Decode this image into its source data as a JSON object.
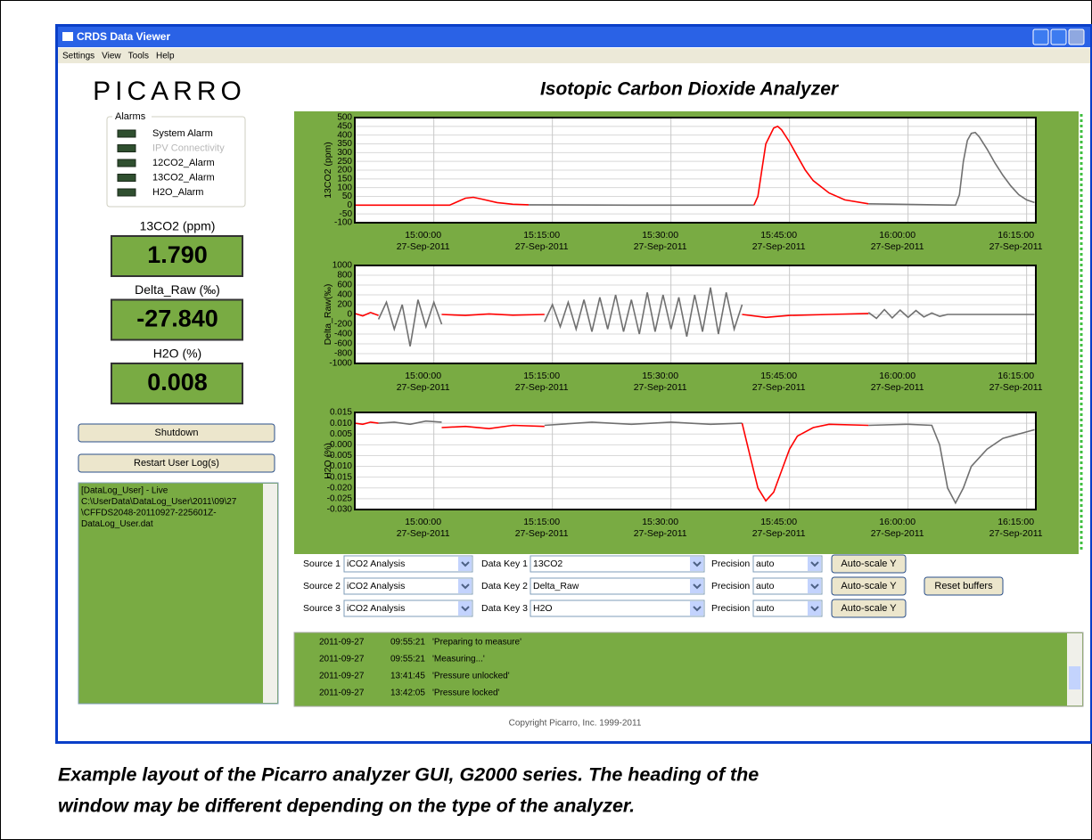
{
  "window": {
    "title": "CRDS Data Viewer",
    "menu": [
      "Settings",
      "View",
      "Tools",
      "Help"
    ]
  },
  "logo": "PICARRO",
  "header_title": "Isotopic Carbon Dioxide Analyzer",
  "alarms": {
    "title": "Alarms",
    "items": [
      "System Alarm",
      "IPV Connectivity",
      "12CO2_Alarm",
      "13CO2_Alarm",
      "H2O_Alarm"
    ]
  },
  "readouts": [
    {
      "label": "13CO2 (ppm)",
      "value": "1.790"
    },
    {
      "label": "Delta_Raw (‰)",
      "value": "-27.840"
    },
    {
      "label": "H2O (%)",
      "value": "0.008"
    }
  ],
  "buttons": [
    "Shutdown",
    "Restart User Log(s)"
  ],
  "user_log": [
    "[DataLog_User] - Live",
    "C:\\UserData\\DataLog_User\\2011\\09\\27",
    "\\CFFDS2048-20110927-225601Z-",
    "DataLog_User.dat"
  ],
  "chart_data": [
    {
      "type": "line",
      "ylabel": "13CO2 (ppm)",
      "date": "27-Sep-2011",
      "xlim": [
        "14:50:00",
        "16:16:10"
      ],
      "xticks": [
        "15:00:00",
        "15:15:00",
        "15:30:00",
        "15:45:00",
        "16:00:00",
        "16:15:00"
      ],
      "ylim": [
        -100,
        500
      ],
      "yticks": [
        500,
        450,
        400,
        350,
        300,
        250,
        200,
        150,
        100,
        50,
        0,
        -50,
        -100
      ],
      "grid": true,
      "series": [
        {
          "color": "#ff0000",
          "x": [
            "14:50:00",
            "15:02:00",
            "15:03:00",
            "15:04:00",
            "15:05:00",
            "15:06:00",
            "15:08:00",
            "15:10:00",
            "15:12:00"
          ],
          "values": [
            0,
            0,
            20,
            40,
            45,
            35,
            15,
            5,
            2
          ]
        },
        {
          "color": "#707070",
          "x": [
            "15:12:00",
            "15:25:00",
            "15:40:30"
          ],
          "values": [
            2,
            0,
            0
          ]
        },
        {
          "color": "#ff0000",
          "x": [
            "15:40:30",
            "15:41:00",
            "15:41:30",
            "15:42:00",
            "15:43:00",
            "15:43:30",
            "15:44:00",
            "15:45:00",
            "15:46:00",
            "15:47:00",
            "15:48:00",
            "15:50:00",
            "15:52:00",
            "15:55:00"
          ],
          "values": [
            0,
            50,
            200,
            350,
            440,
            450,
            430,
            360,
            280,
            200,
            140,
            70,
            30,
            8
          ]
        },
        {
          "color": "#707070",
          "x": [
            "15:55:00",
            "16:06:00",
            "16:06:30",
            "16:07:00",
            "16:07:30",
            "16:08:00",
            "16:08:30",
            "16:09:00",
            "16:10:00",
            "16:11:00",
            "16:12:00",
            "16:13:00",
            "16:14:00",
            "16:15:00",
            "16:16:00"
          ],
          "values": [
            8,
            0,
            60,
            250,
            370,
            410,
            415,
            390,
            320,
            240,
            170,
            110,
            60,
            30,
            15
          ]
        }
      ]
    },
    {
      "type": "line",
      "ylabel": "Delta_Raw(‰)",
      "date": "27-Sep-2011",
      "xlim": [
        "14:50:00",
        "16:16:10"
      ],
      "xticks": [
        "15:00:00",
        "15:15:00",
        "15:30:00",
        "15:45:00",
        "16:00:00",
        "16:15:00"
      ],
      "ylim": [
        -1000,
        1000
      ],
      "yticks": [
        1000,
        800,
        600,
        400,
        200,
        0,
        -200,
        -400,
        -600,
        -800,
        -1000
      ],
      "grid": true,
      "series": [
        {
          "color": "#ff0000",
          "x": [
            "14:50:00",
            "14:51:00",
            "14:52:00",
            "14:53:00"
          ],
          "values": [
            20,
            -30,
            40,
            -20
          ]
        },
        {
          "color": "#707070",
          "x": [
            "14:53:00",
            "14:54:00",
            "14:55:00",
            "14:56:00",
            "14:57:00",
            "14:58:00",
            "14:59:00",
            "15:00:00",
            "15:01:00"
          ],
          "values": [
            -100,
            250,
            -300,
            200,
            -650,
            300,
            -250,
            250,
            -200
          ]
        },
        {
          "color": "#ff0000",
          "x": [
            "15:01:00",
            "15:04:00",
            "15:07:00",
            "15:10:00",
            "15:14:00"
          ],
          "values": [
            0,
            -20,
            10,
            -15,
            0
          ]
        },
        {
          "color": "#707070",
          "x": [
            "15:14:00",
            "15:15:00",
            "15:16:00",
            "15:17:00",
            "15:18:00",
            "15:19:00",
            "15:20:00",
            "15:21:00",
            "15:22:00",
            "15:23:00",
            "15:24:00",
            "15:25:00",
            "15:26:00",
            "15:27:00",
            "15:28:00",
            "15:29:00",
            "15:30:00",
            "15:31:00",
            "15:32:00",
            "15:33:00",
            "15:34:00",
            "15:35:00",
            "15:36:00",
            "15:37:00",
            "15:38:00",
            "15:39:00"
          ],
          "values": [
            -150,
            200,
            -250,
            250,
            -300,
            300,
            -350,
            350,
            -300,
            400,
            -350,
            300,
            -400,
            450,
            -350,
            400,
            -300,
            350,
            -450,
            400,
            -350,
            550,
            -400,
            450,
            -300,
            200
          ]
        },
        {
          "color": "#ff0000",
          "x": [
            "15:39:00",
            "15:42:00",
            "15:45:00",
            "15:50:00",
            "15:55:00"
          ],
          "values": [
            0,
            -60,
            -20,
            0,
            20
          ]
        },
        {
          "color": "#707070",
          "x": [
            "15:55:00",
            "15:56:00",
            "15:57:00",
            "15:58:00",
            "15:59:00",
            "16:00:00",
            "16:01:00",
            "16:02:00",
            "16:03:00",
            "16:04:00",
            "16:05:00",
            "16:16:00"
          ],
          "values": [
            40,
            -80,
            100,
            -70,
            90,
            -60,
            80,
            -50,
            30,
            -40,
            0,
            0
          ]
        }
      ]
    },
    {
      "type": "line",
      "ylabel": "H2O (%)",
      "date": "27-Sep-2011",
      "xlim": [
        "14:50:00",
        "16:16:10"
      ],
      "xticks": [
        "15:00:00",
        "15:15:00",
        "15:30:00",
        "15:45:00",
        "16:00:00",
        "16:15:00"
      ],
      "ylim": [
        -0.03,
        0.015
      ],
      "yticks": [
        0.015,
        {
          "value": 0.01,
          "label": "0.010"
        },
        0.005,
        {
          "value": 0,
          "label": "0.000"
        },
        -0.005,
        {
          "value": -0.01,
          "label": "-0.010"
        },
        -0.015,
        {
          "value": -0.02,
          "label": "-0.020"
        },
        -0.025,
        {
          "value": -0.03,
          "label": "-0.030"
        }
      ],
      "grid": true,
      "series": [
        {
          "color": "#ff0000",
          "x": [
            "14:50:00",
            "14:51:00",
            "14:52:00",
            "14:53:00"
          ],
          "values": [
            0.01,
            0.0095,
            0.0105,
            0.01
          ]
        },
        {
          "color": "#707070",
          "x": [
            "14:53:00",
            "14:55:00",
            "14:57:00",
            "14:59:00",
            "15:01:00"
          ],
          "values": [
            0.01,
            0.0105,
            0.0095,
            0.011,
            0.0105
          ]
        },
        {
          "color": "#ff0000",
          "x": [
            "15:01:00",
            "15:04:00",
            "15:07:00",
            "15:10:00",
            "15:14:00"
          ],
          "values": [
            0.008,
            0.0085,
            0.0075,
            0.009,
            0.0085
          ]
        },
        {
          "color": "#707070",
          "x": [
            "15:14:00",
            "15:20:00",
            "15:25:00",
            "15:30:00",
            "15:35:00",
            "15:39:00"
          ],
          "values": [
            0.009,
            0.0105,
            0.0095,
            0.0105,
            0.0095,
            0.01
          ]
        },
        {
          "color": "#ff0000",
          "x": [
            "15:39:00",
            "15:40:00",
            "15:41:00",
            "15:42:00",
            "15:43:00",
            "15:44:00",
            "15:45:00",
            "15:46:00",
            "15:48:00",
            "15:50:00",
            "15:55:00"
          ],
          "values": [
            0.01,
            -0.005,
            -0.02,
            -0.026,
            -0.022,
            -0.012,
            -0.002,
            0.004,
            0.008,
            0.0095,
            0.009
          ]
        },
        {
          "color": "#707070",
          "x": [
            "15:55:00",
            "16:00:00",
            "16:03:00",
            "16:04:00",
            "16:05:00",
            "16:06:00",
            "16:07:00",
            "16:08:00",
            "16:10:00",
            "16:12:00",
            "16:14:00",
            "16:16:00"
          ],
          "values": [
            0.009,
            0.0095,
            0.009,
            0,
            -0.02,
            -0.027,
            -0.02,
            -0.01,
            -0.002,
            0.003,
            0.005,
            0.007
          ]
        }
      ]
    }
  ],
  "controls": [
    {
      "source_label": "Source 1",
      "source": "iCO2 Analysis",
      "key_label": "Data Key 1",
      "key": "13CO2",
      "precision_label": "Precision",
      "precision": "auto",
      "button": "Auto-scale Y"
    },
    {
      "source_label": "Source 2",
      "source": "iCO2 Analysis",
      "key_label": "Data Key 2",
      "key": "Delta_Raw",
      "precision_label": "Precision",
      "precision": "auto",
      "button": "Auto-scale Y"
    },
    {
      "source_label": "Source 3",
      "source": "iCO2 Analysis",
      "key_label": "Data Key 3",
      "key": "H2O",
      "precision_label": "Precision",
      "precision": "auto",
      "button": "Auto-scale Y"
    }
  ],
  "reset_button": "Reset buffers",
  "event_log": [
    [
      "2011-09-27",
      "09:55:21",
      "'Preparing to measure'"
    ],
    [
      "2011-09-27",
      "09:55:21",
      "'Measuring...'"
    ],
    [
      "2011-09-27",
      "13:41:45",
      "'Pressure unlocked'"
    ],
    [
      "2011-09-27",
      "13:42:05",
      "'Pressure locked'"
    ]
  ],
  "copyright": "Copyright Picarro, Inc. 1999-2011",
  "caption": [
    "Example layout of the Picarro analyzer GUI, G2000 series. The heading of the",
    "window may be different depending on the type of the analyzer."
  ]
}
